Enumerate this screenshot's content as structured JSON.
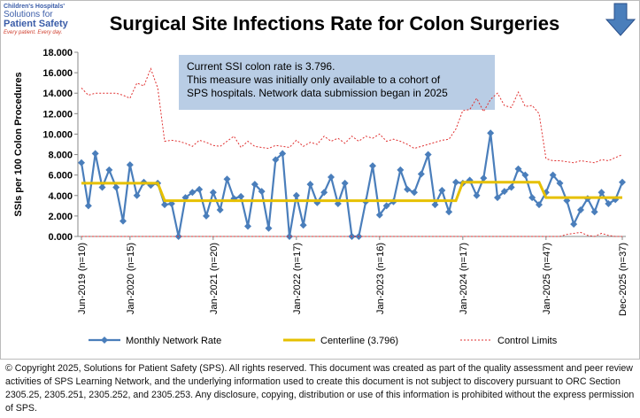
{
  "logo": {
    "line1": "Children's Hospitals'",
    "line2": "Solutions for",
    "line3": "Patient Safety",
    "tagline": "Every patient. Every day."
  },
  "chart_data": {
    "type": "line",
    "title": "Surgical Site Infections Rate for Colon Surgeries",
    "ylabel": "SSIs per 100 Colon Procedures",
    "annotation": [
      "Current SSI colon rate is 3.796.",
      "This measure was initially only available  to a cohort of",
      "SPS hospitals. Network data submission began in 2025"
    ],
    "ylim": [
      0,
      18
    ],
    "yticks": [
      {
        "value": 0,
        "label": "0.000"
      },
      {
        "value": 2,
        "label": "2.000"
      },
      {
        "value": 4,
        "label": "4.000"
      },
      {
        "value": 6,
        "label": "6.000"
      },
      {
        "value": 8,
        "label": "8.000"
      },
      {
        "value": 10,
        "label": "10.000"
      },
      {
        "value": 12,
        "label": "12.000"
      },
      {
        "value": 14,
        "label": "14.000"
      },
      {
        "value": 16,
        "label": "16.000"
      },
      {
        "value": 18,
        "label": "18.000"
      }
    ],
    "legend": "bottom",
    "categories": [
      "Jun-2019 (n=10)",
      null,
      null,
      null,
      null,
      null,
      null,
      "Jan-2020 (n=15)",
      null,
      null,
      null,
      null,
      null,
      null,
      null,
      null,
      null,
      null,
      null,
      "Jan-2021 (n=20)",
      null,
      null,
      null,
      null,
      null,
      null,
      null,
      null,
      null,
      null,
      null,
      "Jan-2022 (n=17)",
      null,
      null,
      null,
      null,
      null,
      null,
      null,
      null,
      null,
      null,
      null,
      "Jan-2023 (n=16)",
      null,
      null,
      null,
      null,
      null,
      null,
      null,
      null,
      null,
      null,
      null,
      "Jan-2024 (n=17)",
      null,
      null,
      null,
      null,
      null,
      null,
      null,
      null,
      null,
      null,
      null,
      "Jan-2025 (n=47)",
      null,
      null,
      null,
      null,
      null,
      null,
      null,
      null,
      null,
      null,
      "Dec-2025 (n=37)"
    ],
    "series": [
      {
        "name": "Monthly Network Rate",
        "color": "#4a7ebb",
        "style": "marker",
        "values": [
          7.2,
          3.0,
          8.1,
          4.8,
          6.5,
          4.8,
          1.5,
          7.0,
          4.0,
          5.3,
          5.0,
          5.2,
          3.1,
          3.2,
          0.0,
          3.8,
          4.3,
          4.6,
          2.0,
          4.3,
          2.6,
          5.6,
          3.7,
          3.9,
          1.0,
          5.1,
          4.4,
          0.8,
          7.5,
          8.1,
          0.0,
          4.0,
          1.1,
          5.1,
          3.3,
          4.3,
          5.8,
          3.2,
          5.2,
          0.0,
          0.0,
          3.4,
          6.9,
          2.1,
          3.0,
          3.4,
          6.5,
          4.6,
          4.3,
          6.1,
          8.0,
          3.1,
          4.5,
          2.4,
          5.3,
          5.2,
          5.5,
          4.0,
          5.7,
          10.1,
          3.8,
          4.4,
          4.8,
          6.6,
          6.0,
          3.8,
          3.1,
          4.3,
          6.0,
          5.2,
          3.5,
          1.2,
          2.6,
          3.7,
          2.4,
          4.3,
          3.2,
          3.6,
          5.3
        ]
      },
      {
        "name": "Centerline (3.796)",
        "color": "#e6c000",
        "style": "thick",
        "values": [
          5.2,
          5.2,
          5.2,
          5.2,
          5.2,
          5.2,
          5.2,
          5.2,
          5.2,
          5.2,
          5.2,
          5.2,
          3.5,
          3.5,
          3.5,
          3.5,
          3.5,
          3.5,
          3.5,
          3.5,
          3.5,
          3.5,
          3.5,
          3.5,
          3.5,
          3.5,
          3.5,
          3.5,
          3.5,
          3.5,
          3.5,
          3.5,
          3.5,
          3.5,
          3.5,
          3.5,
          3.5,
          3.5,
          3.5,
          3.5,
          3.5,
          3.5,
          3.5,
          3.5,
          3.5,
          3.5,
          3.5,
          3.5,
          3.5,
          3.5,
          3.5,
          3.5,
          3.5,
          3.5,
          3.5,
          5.3,
          5.3,
          5.3,
          5.3,
          5.3,
          5.3,
          5.3,
          5.3,
          5.3,
          5.3,
          5.3,
          5.3,
          3.796,
          3.796,
          3.796,
          3.796,
          3.796,
          3.796,
          3.796,
          3.796,
          3.796,
          3.796,
          3.796,
          3.796
        ]
      },
      {
        "name": "Control Limits",
        "color": "#e03030",
        "style": "dashed",
        "values": [
          14.5,
          13.8,
          14.0,
          14.0,
          14.0,
          14.0,
          13.8,
          13.5,
          15.0,
          14.7,
          16.4,
          14.5,
          9.3,
          9.4,
          9.3,
          9.1,
          8.8,
          9.4,
          9.2,
          8.9,
          8.8,
          9.3,
          9.8,
          8.7,
          9.3,
          8.8,
          8.7,
          8.6,
          8.9,
          8.8,
          8.7,
          9.4,
          8.8,
          9.2,
          9.0,
          9.8,
          9.3,
          9.6,
          9.1,
          9.8,
          9.3,
          9.8,
          9.6,
          10.0,
          9.3,
          9.5,
          9.3,
          9.0,
          8.6,
          8.8,
          9.0,
          9.2,
          9.4,
          9.5,
          10.5,
          12.3,
          12.4,
          13.5,
          12.2,
          13.4,
          14.0,
          12.8,
          12.6,
          14.1,
          12.7,
          12.8,
          12.0,
          7.6,
          7.4,
          7.4,
          7.3,
          7.2,
          7.4,
          7.3,
          7.2,
          7.5,
          7.4,
          7.7,
          8.0
        ],
        "lower": [
          0,
          0,
          0,
          0,
          0,
          0,
          0,
          0,
          0,
          0,
          0,
          0,
          0,
          0,
          0,
          0,
          0,
          0,
          0,
          0,
          0,
          0,
          0,
          0,
          0,
          0,
          0,
          0,
          0,
          0,
          0,
          0,
          0,
          0,
          0,
          0,
          0,
          0,
          0,
          0,
          0,
          0,
          0,
          0,
          0,
          0,
          0,
          0,
          0,
          0,
          0,
          0,
          0,
          0,
          0,
          0,
          0,
          0,
          0,
          0,
          0,
          0,
          0,
          0,
          0,
          0,
          0,
          0,
          0,
          0,
          0.2,
          0.3,
          0.4,
          0.1,
          0,
          0.3,
          0.1,
          0,
          0
        ]
      }
    ]
  },
  "footer": "© Copyright 2025, Solutions for Patient Safety (SPS).  All rights reserved.  This document was created as part of the quality assessment and peer review activities of SPS Learning Network, and the underlying information used to create this document is not subject to discovery pursuant to ORC Section 2305.25, 2305.251, 2305.252, and 2305.253. Any disclosure, copying, distribution or use of this information is prohibited without the express permission of SPS."
}
